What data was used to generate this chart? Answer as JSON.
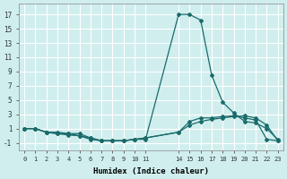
{
  "title": "",
  "xlabel": "Humidex (Indice chaleur)",
  "background_color": "#d0eeee",
  "grid_color": "#ffffff",
  "line_color": "#1a6b6b",
  "series": [
    {
      "x": [
        0,
        1,
        2,
        3,
        4,
        5,
        6,
        7,
        8,
        9,
        10,
        11,
        14,
        15,
        16,
        17,
        18,
        19,
        20,
        21,
        22,
        23
      ],
      "y": [
        1,
        1,
        0.5,
        0.5,
        0.3,
        0.3,
        -0.3,
        -0.7,
        -0.7,
        -0.7,
        -0.5,
        -0.5,
        17,
        17,
        16.2,
        8.5,
        4.7,
        3.2,
        2.0,
        1.8,
        1.0,
        -0.5
      ]
    },
    {
      "x": [
        0,
        1,
        2,
        3,
        4,
        5,
        6,
        7,
        8,
        9,
        10,
        11,
        14,
        15,
        16,
        17,
        18,
        19,
        20,
        21,
        22,
        23
      ],
      "y": [
        1,
        1,
        0.5,
        0.3,
        0.3,
        0.0,
        -0.5,
        -0.7,
        -0.7,
        -0.7,
        -0.5,
        -0.3,
        0.5,
        2.0,
        2.5,
        2.5,
        2.7,
        2.8,
        2.5,
        2.2,
        -0.5,
        -0.7
      ]
    },
    {
      "x": [
        0,
        1,
        2,
        3,
        4,
        5,
        6,
        7,
        8,
        9,
        10,
        11,
        14,
        15,
        16,
        17,
        18,
        19,
        20,
        21,
        22,
        23
      ],
      "y": [
        1,
        1,
        0.5,
        0.3,
        0.1,
        0.0,
        -0.3,
        -0.7,
        -0.7,
        -0.7,
        -0.5,
        -0.3,
        0.5,
        1.5,
        2.0,
        2.3,
        2.5,
        2.7,
        2.8,
        2.5,
        1.5,
        -0.7
      ]
    }
  ],
  "xlim": [
    -0.5,
    23.5
  ],
  "ylim": [
    -2,
    18.5
  ],
  "yticks": [
    -1,
    1,
    3,
    5,
    7,
    9,
    11,
    13,
    15,
    17
  ],
  "xtick_positions": [
    0,
    1,
    2,
    3,
    4,
    5,
    6,
    7,
    8,
    9,
    10,
    11,
    14,
    15,
    16,
    17,
    18,
    19,
    20,
    21,
    22,
    23
  ],
  "xtick_labels": [
    "0",
    "1",
    "2",
    "3",
    "4",
    "5",
    "6",
    "7",
    "8",
    "9",
    "10",
    "11",
    "14",
    "15",
    "16",
    "17",
    "18",
    "19",
    "20",
    "21",
    "22",
    "23"
  ]
}
